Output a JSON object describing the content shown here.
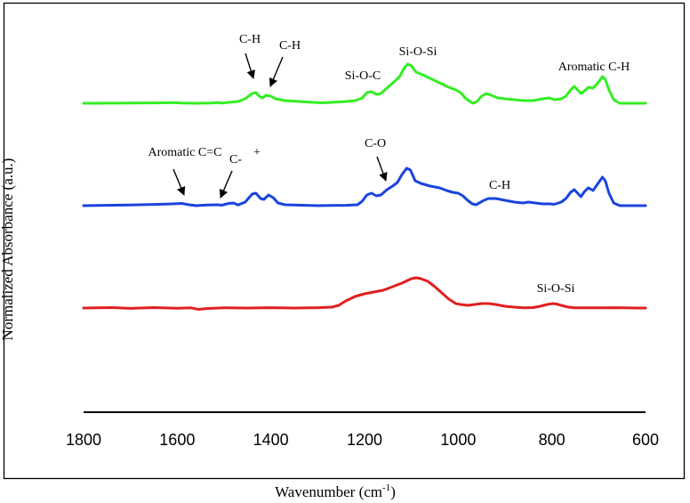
{
  "chart_data": {
    "type": "line",
    "title": "",
    "xlabel": "Wavenumber (cm",
    "xlabel_superscript": "-1",
    "xlabel_close": ")",
    "ylabel": "Normalized Absorbance  (a.u.)",
    "xlim": [
      1800,
      600
    ],
    "x_ticks": [
      1800,
      1600,
      1400,
      1200,
      1000,
      800,
      600
    ],
    "grid": false,
    "legend": "none",
    "series": [
      {
        "name": "top",
        "color": "#33ee22",
        "baseline": 0,
        "points": [
          [
            1800,
            0
          ],
          [
            1700,
            0.2
          ],
          [
            1650,
            0.4
          ],
          [
            1610,
            0.8
          ],
          [
            1590,
            0.2
          ],
          [
            1560,
            0
          ],
          [
            1525,
            0.2
          ],
          [
            1515,
            0.8
          ],
          [
            1505,
            0.3
          ],
          [
            1490,
            1
          ],
          [
            1470,
            2
          ],
          [
            1455,
            5
          ],
          [
            1440,
            11
          ],
          [
            1432,
            12
          ],
          [
            1425,
            8
          ],
          [
            1418,
            6
          ],
          [
            1410,
            9
          ],
          [
            1400,
            8
          ],
          [
            1390,
            5
          ],
          [
            1370,
            3
          ],
          [
            1340,
            2
          ],
          [
            1310,
            1
          ],
          [
            1290,
            0.5
          ],
          [
            1270,
            1
          ],
          [
            1240,
            2
          ],
          [
            1220,
            3
          ],
          [
            1205,
            6
          ],
          [
            1195,
            12
          ],
          [
            1185,
            13
          ],
          [
            1175,
            10
          ],
          [
            1165,
            11
          ],
          [
            1150,
            18
          ],
          [
            1135,
            25
          ],
          [
            1125,
            30
          ],
          [
            1115,
            40
          ],
          [
            1108,
            44
          ],
          [
            1100,
            42
          ],
          [
            1090,
            35
          ],
          [
            1080,
            33
          ],
          [
            1060,
            28
          ],
          [
            1040,
            23
          ],
          [
            1020,
            18
          ],
          [
            1005,
            15
          ],
          [
            995,
            12
          ],
          [
            985,
            6
          ],
          [
            975,
            2
          ],
          [
            968,
            0
          ],
          [
            960,
            2
          ],
          [
            950,
            8
          ],
          [
            940,
            11
          ],
          [
            930,
            9
          ],
          [
            915,
            6
          ],
          [
            900,
            5
          ],
          [
            880,
            4
          ],
          [
            860,
            3
          ],
          [
            840,
            3
          ],
          [
            820,
            5
          ],
          [
            805,
            6
          ],
          [
            795,
            4
          ],
          [
            780,
            5
          ],
          [
            770,
            8
          ],
          [
            760,
            15
          ],
          [
            752,
            19
          ],
          [
            745,
            15
          ],
          [
            738,
            11
          ],
          [
            730,
            14
          ],
          [
            722,
            18
          ],
          [
            712,
            17
          ],
          [
            700,
            24
          ],
          [
            692,
            30
          ],
          [
            686,
            27
          ],
          [
            678,
            15
          ],
          [
            668,
            4
          ],
          [
            655,
            0
          ],
          [
            630,
            0
          ],
          [
            600,
            0
          ]
        ]
      },
      {
        "name": "middle",
        "color": "#1a44dd",
        "baseline": 0,
        "points": [
          [
            1800,
            0
          ],
          [
            1700,
            0.8
          ],
          [
            1640,
            1.5
          ],
          [
            1610,
            2
          ],
          [
            1590,
            2.5
          ],
          [
            1575,
            1
          ],
          [
            1560,
            0
          ],
          [
            1535,
            0.8
          ],
          [
            1515,
            1
          ],
          [
            1505,
            0.5
          ],
          [
            1490,
            2.5
          ],
          [
            1480,
            3
          ],
          [
            1470,
            0.8
          ],
          [
            1455,
            4
          ],
          [
            1440,
            13
          ],
          [
            1432,
            14
          ],
          [
            1422,
            8
          ],
          [
            1415,
            7
          ],
          [
            1405,
            12
          ],
          [
            1395,
            9
          ],
          [
            1385,
            3
          ],
          [
            1370,
            1
          ],
          [
            1300,
            0
          ],
          [
            1240,
            0.4
          ],
          [
            1215,
            1
          ],
          [
            1205,
            5
          ],
          [
            1195,
            12
          ],
          [
            1185,
            14
          ],
          [
            1175,
            11
          ],
          [
            1165,
            12
          ],
          [
            1152,
            18
          ],
          [
            1140,
            22
          ],
          [
            1130,
            26
          ],
          [
            1120,
            35
          ],
          [
            1110,
            42
          ],
          [
            1102,
            40
          ],
          [
            1092,
            28
          ],
          [
            1080,
            25
          ],
          [
            1060,
            22
          ],
          [
            1040,
            20
          ],
          [
            1025,
            17
          ],
          [
            1012,
            15
          ],
          [
            1000,
            14
          ],
          [
            990,
            11
          ],
          [
            980,
            6
          ],
          [
            970,
            2
          ],
          [
            962,
            1
          ],
          [
            955,
            3
          ],
          [
            945,
            6
          ],
          [
            935,
            8
          ],
          [
            920,
            8
          ],
          [
            900,
            6
          ],
          [
            880,
            4
          ],
          [
            862,
            3
          ],
          [
            850,
            4
          ],
          [
            835,
            3
          ],
          [
            820,
            2
          ],
          [
            805,
            2
          ],
          [
            795,
            1.5
          ],
          [
            780,
            4
          ],
          [
            770,
            8
          ],
          [
            760,
            15
          ],
          [
            752,
            18
          ],
          [
            745,
            14
          ],
          [
            738,
            10
          ],
          [
            730,
            16
          ],
          [
            722,
            20
          ],
          [
            712,
            17
          ],
          [
            700,
            26
          ],
          [
            692,
            32
          ],
          [
            686,
            28
          ],
          [
            678,
            14
          ],
          [
            668,
            3
          ],
          [
            655,
            0
          ],
          [
            630,
            0
          ],
          [
            600,
            0
          ]
        ]
      },
      {
        "name": "bottom",
        "color": "#e02020",
        "baseline": 0,
        "points": [
          [
            1800,
            0
          ],
          [
            1740,
            0.5
          ],
          [
            1700,
            -0.4
          ],
          [
            1650,
            0.5
          ],
          [
            1600,
            -0.2
          ],
          [
            1570,
            0.2
          ],
          [
            1555,
            -1.5
          ],
          [
            1535,
            -0.5
          ],
          [
            1500,
            0.3
          ],
          [
            1450,
            0
          ],
          [
            1400,
            0.4
          ],
          [
            1350,
            0
          ],
          [
            1300,
            0.4
          ],
          [
            1270,
            1
          ],
          [
            1255,
            3
          ],
          [
            1240,
            8
          ],
          [
            1220,
            13
          ],
          [
            1200,
            16
          ],
          [
            1180,
            18
          ],
          [
            1160,
            20
          ],
          [
            1140,
            24
          ],
          [
            1120,
            28
          ],
          [
            1100,
            33
          ],
          [
            1090,
            34
          ],
          [
            1080,
            33
          ],
          [
            1065,
            30
          ],
          [
            1050,
            24
          ],
          [
            1035,
            17
          ],
          [
            1020,
            10
          ],
          [
            1005,
            5
          ],
          [
            995,
            4
          ],
          [
            980,
            3
          ],
          [
            965,
            4
          ],
          [
            950,
            5
          ],
          [
            935,
            5
          ],
          [
            920,
            4
          ],
          [
            900,
            2
          ],
          [
            880,
            1
          ],
          [
            860,
            0.3
          ],
          [
            840,
            0.5
          ],
          [
            825,
            2
          ],
          [
            810,
            4
          ],
          [
            798,
            5
          ],
          [
            790,
            4.5
          ],
          [
            780,
            3
          ],
          [
            765,
            1
          ],
          [
            750,
            0.3
          ],
          [
            700,
            0.3
          ],
          [
            660,
            0.4
          ],
          [
            620,
            0
          ],
          [
            600,
            0
          ]
        ]
      }
    ],
    "annotations": [
      {
        "text": "C-H",
        "series": "top",
        "arrow": true
      },
      {
        "text": "C-H",
        "series": "top",
        "arrow": true
      },
      {
        "text": "Si-O-C",
        "series": "top",
        "arrow": false
      },
      {
        "text": "Si-O-Si",
        "series": "top",
        "arrow": false
      },
      {
        "text": "Aromatic C-H",
        "series": "top",
        "arrow": false
      },
      {
        "text": "Aromatic C=C",
        "series": "middle",
        "arrow": true
      },
      {
        "text": "C-",
        "series": "middle",
        "arrow": true
      },
      {
        "text": "+",
        "series": "middle",
        "arrow": false
      },
      {
        "text": "C-O",
        "series": "middle",
        "arrow": true
      },
      {
        "text": "C-H",
        "series": "middle",
        "arrow": false
      },
      {
        "text": "Si-O-Si",
        "series": "bottom",
        "arrow": false
      }
    ]
  }
}
